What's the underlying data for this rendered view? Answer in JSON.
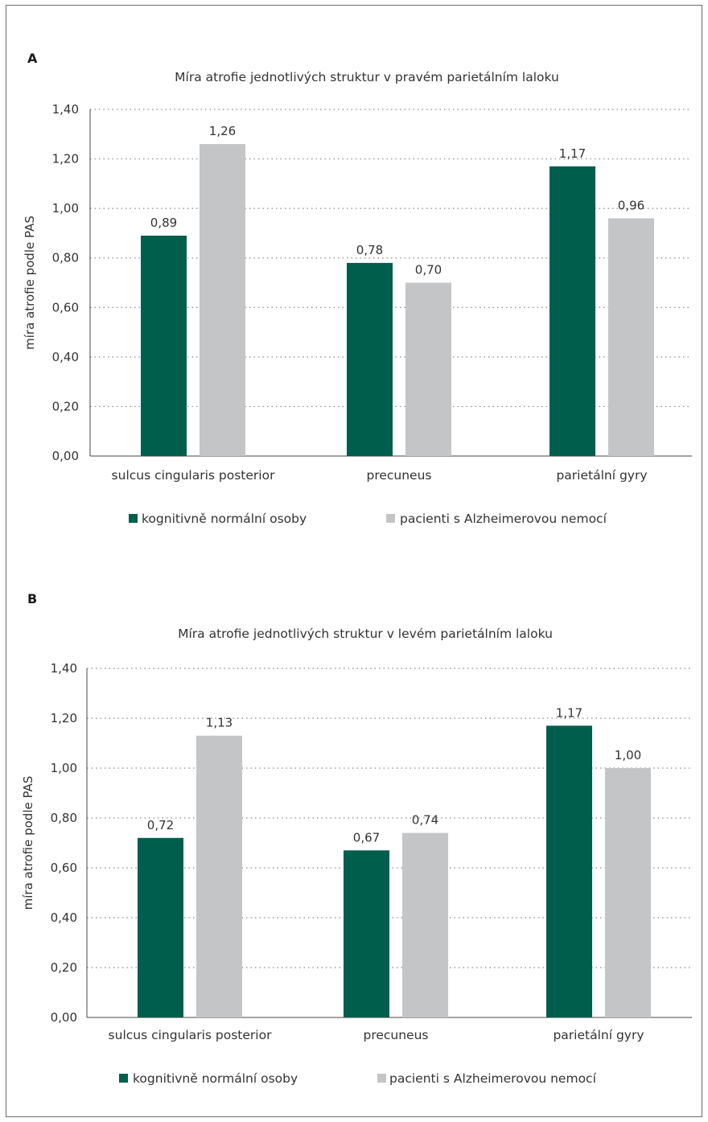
{
  "chart_data": [
    {
      "panel": "A",
      "type": "bar",
      "title": "Míra atrofie jednotlivých struktur v pravém parietálním laloku",
      "ylabel": "míra atrofie podle PAS",
      "xlabel": "",
      "ylim": [
        0,
        1.4
      ],
      "yticks": [
        "0,00",
        "0,20",
        "0,40",
        "0,60",
        "0,80",
        "1,00",
        "1,20",
        "1,40"
      ],
      "grid": "horizontal dotted",
      "legend_position": "bottom",
      "categories": [
        "sulcus cingularis posterior",
        "precuneus",
        "parietální gyry"
      ],
      "series": [
        {
          "name": "kognitivně normální osoby",
          "color": "#005e4d",
          "values": [
            0.89,
            0.78,
            1.17
          ],
          "labels": [
            "0,89",
            "0,78",
            "1,17"
          ]
        },
        {
          "name": "pacienti s Alzheimerovou nemocí",
          "color": "#c4c5c7",
          "values": [
            1.26,
            0.7,
            0.96
          ],
          "labels": [
            "1,26",
            "0,70",
            "0,96"
          ]
        }
      ]
    },
    {
      "panel": "B",
      "type": "bar",
      "title": "Míra atrofie jednotlivých struktur v levém parietálním laloku",
      "ylabel": "míra atrofie podle PAS",
      "xlabel": "",
      "ylim": [
        0,
        1.4
      ],
      "yticks": [
        "0,00",
        "0,20",
        "0,40",
        "0,60",
        "0,80",
        "1,00",
        "1,20",
        "1,40"
      ],
      "grid": "horizontal dotted",
      "legend_position": "bottom",
      "categories": [
        "sulcus cingularis posterior",
        "precuneus",
        "parietální gyry"
      ],
      "series": [
        {
          "name": "kognitivně normální osoby",
          "color": "#005e4d",
          "values": [
            0.72,
            0.67,
            1.17
          ],
          "labels": [
            "0,72",
            "0,67",
            "1,17"
          ]
        },
        {
          "name": "pacienti s Alzheimerovou nemocí",
          "color": "#c4c5c7",
          "values": [
            1.13,
            0.74,
            1.0
          ],
          "labels": [
            "1,13",
            "0,74",
            "1,00"
          ]
        }
      ]
    }
  ]
}
